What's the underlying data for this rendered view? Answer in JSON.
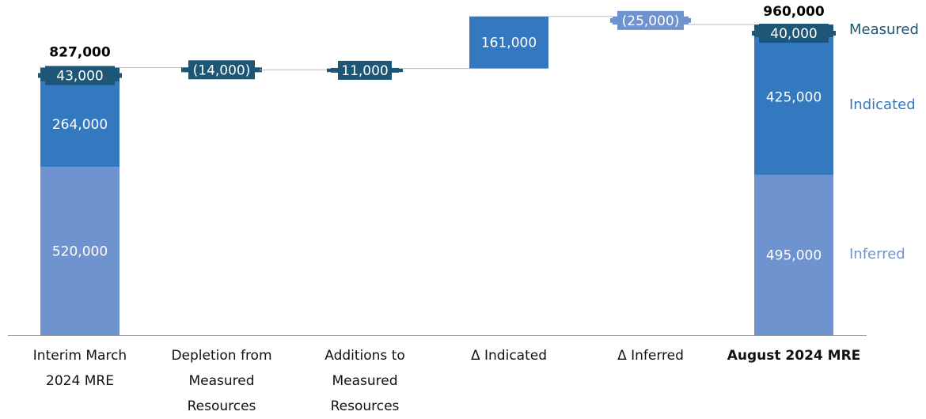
{
  "chart_data": {
    "type": "waterfall",
    "categories": [
      "Interim March 2024 MRE",
      "Depletion from Measured Resources",
      "Additions to Measured Resources",
      "Δ Indicated",
      "Δ Inferred",
      "August 2024 MRE"
    ],
    "category_lines": [
      [
        "Interim March",
        "2024 MRE"
      ],
      [
        "Depletion from",
        "Measured",
        "Resources"
      ],
      [
        "Additions to",
        "Measured",
        "Resources"
      ],
      [
        "Δ Indicated"
      ],
      [
        "Δ Inferred"
      ],
      [
        "August 2024 MRE"
      ]
    ],
    "series": [
      {
        "name": "Inferred",
        "values": [
          520000,
          null,
          null,
          null,
          -25000,
          495000
        ]
      },
      {
        "name": "Indicated",
        "values": [
          264000,
          null,
          null,
          161000,
          null,
          425000
        ]
      },
      {
        "name": "Measured",
        "values": [
          43000,
          -14000,
          11000,
          null,
          null,
          40000
        ]
      }
    ],
    "data_labels": [
      "520,000",
      "264,000",
      "43,000",
      "(14,000)",
      "11,000",
      "161,000",
      "(25,000)",
      "495,000",
      "425,000",
      "40,000"
    ],
    "totals": [
      827000,
      null,
      null,
      null,
      null,
      960000
    ],
    "total_labels": [
      "827,000",
      "960,000"
    ],
    "colors": {
      "Inferred": "#6F93CE",
      "Indicated": "#3478C0",
      "Measured": "#1D5676",
      "legend_measured": "#1D5676",
      "legend_indicated": "#3478C0",
      "legend_inferred": "#6F93CE"
    },
    "ylim": [
      0,
      1020000
    ],
    "grid": false,
    "legend_position": "right"
  }
}
